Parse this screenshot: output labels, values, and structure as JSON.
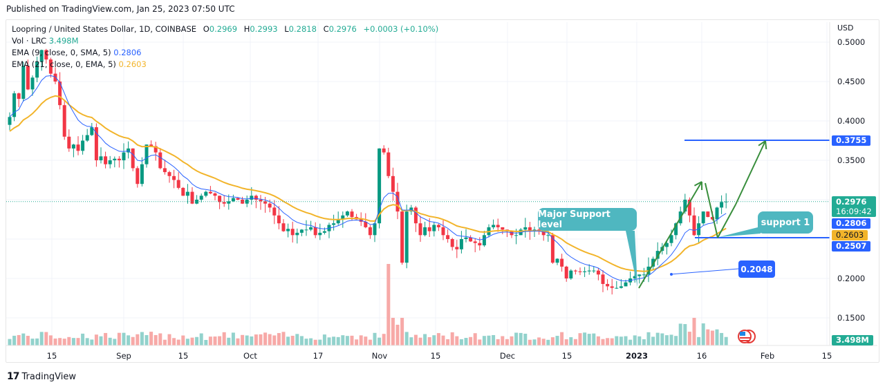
{
  "header": {
    "published": "Published on TradingView.com, Jan 25, 2023 07:50 UTC"
  },
  "legend": {
    "symbol": "Loopring / United States Dollar, 1D, COINBASE",
    "open_label": "O",
    "open": "0.2969",
    "high_label": "H",
    "high": "0.2993",
    "low_label": "L",
    "low": "0.2818",
    "close_label": "C",
    "close": "0.2976",
    "change": "+0.0003 (+0.10%)",
    "vol_label": "Vol · LRC",
    "vol_value": "3.498M",
    "ema9_label": "EMA (9, close, 0, SMA, 5)",
    "ema9_value": "0.2806",
    "ema21_label": "EMA (21, close, 0, EMA, 5)",
    "ema21_value": "0.2603"
  },
  "price_axis": {
    "currency": "USD",
    "ticks": [
      "0.5000",
      "0.4500",
      "0.4000",
      "0.3500",
      "0.2000",
      "0.1500"
    ],
    "badges": {
      "target": "0.3755",
      "last_price": "0.2976",
      "countdown": "16:09:42",
      "ema9": "0.2806",
      "ema21": "0.2603",
      "support": "0.2507",
      "volume": "3.498M"
    }
  },
  "time_axis": {
    "ticks": [
      "15",
      "Sep",
      "15",
      "Oct",
      "17",
      "Nov",
      "15",
      "Dec",
      "15",
      "2023",
      "16",
      "Feb",
      "15"
    ]
  },
  "annotations": {
    "major_support": "Major Support level",
    "support_1": "support 1",
    "pill_value": "0.2048"
  },
  "footer": {
    "logo_glyph": "17",
    "brand": "TradingView"
  },
  "colors": {
    "up": "#089981",
    "down": "#f23645",
    "vol_up": "#92d2cc",
    "vol_down": "#f7a9a7",
    "ema9": "#2962ff",
    "ema21": "#f2b42a",
    "drawing_blue": "#2962ff",
    "arrow_green": "#388e3c",
    "callout": "#4fb7c0",
    "last_price": "#22ab94"
  },
  "chart_data": {
    "type": "candlestick",
    "title": "Loopring / United States Dollar, 1D, COINBASE",
    "xlabel": "",
    "ylabel": "USD",
    "ylim": [
      0.125,
      0.52
    ],
    "x_tick_labels": [
      "15",
      "Sep",
      "15",
      "Oct",
      "17",
      "Nov",
      "15",
      "Dec",
      "15",
      "2023",
      "16",
      "Feb",
      "15"
    ],
    "y_tick_labels": [
      "0.5000",
      "0.4500",
      "0.4000",
      "0.3500",
      "0.2000",
      "0.1500"
    ],
    "grid": true,
    "last": {
      "open": 0.2969,
      "high": 0.2993,
      "low": 0.2818,
      "close": 0.2976,
      "change": 0.0003,
      "change_pct": 0.1
    },
    "indicators": [
      {
        "name": "EMA 9",
        "value": 0.2806,
        "color": "#2962ff"
      },
      {
        "name": "EMA 21",
        "value": 0.2603,
        "color": "#f2b42a"
      }
    ],
    "volume_last": "3.498M",
    "horizontal_levels": [
      {
        "label": "target",
        "value": 0.3755
      },
      {
        "label": "support 1",
        "value": 0.2507
      },
      {
        "label": "annotation",
        "value": 0.2048
      }
    ],
    "closes": [
      0.405,
      0.435,
      0.428,
      0.47,
      0.44,
      0.455,
      0.475,
      0.49,
      0.478,
      0.46,
      0.45,
      0.42,
      0.38,
      0.365,
      0.37,
      0.362,
      0.375,
      0.382,
      0.392,
      0.35,
      0.355,
      0.345,
      0.35,
      0.352,
      0.35,
      0.36,
      0.365,
      0.34,
      0.32,
      0.345,
      0.37,
      0.368,
      0.36,
      0.34,
      0.335,
      0.33,
      0.325,
      0.315,
      0.305,
      0.31,
      0.295,
      0.3,
      0.305,
      0.31,
      0.308,
      0.305,
      0.297,
      0.295,
      0.298,
      0.302,
      0.3,
      0.295,
      0.3,
      0.305,
      0.3,
      0.298,
      0.295,
      0.29,
      0.28,
      0.27,
      0.26,
      0.263,
      0.255,
      0.258,
      0.262,
      0.262,
      0.265,
      0.255,
      0.258,
      0.26,
      0.268,
      0.27,
      0.275,
      0.28,
      0.285,
      0.278,
      0.275,
      0.272,
      0.265,
      0.255,
      0.27,
      0.365,
      0.36,
      0.33,
      0.31,
      0.285,
      0.22,
      0.285,
      0.29,
      0.27,
      0.255,
      0.265,
      0.26,
      0.268,
      0.265,
      0.255,
      0.25,
      0.24,
      0.237,
      0.25,
      0.252,
      0.247,
      0.245,
      0.242,
      0.255,
      0.265,
      0.268,
      0.265,
      0.262,
      0.26,
      0.255,
      0.255,
      0.262,
      0.265,
      0.26,
      0.262,
      0.26,
      0.255,
      0.255,
      0.22,
      0.225,
      0.215,
      0.2,
      0.21,
      0.209,
      0.208,
      0.209,
      0.21,
      0.21,
      0.205,
      0.193,
      0.19,
      0.188,
      0.188,
      0.19,
      0.195,
      0.2,
      0.203,
      0.205,
      0.205,
      0.215,
      0.225,
      0.235,
      0.24,
      0.245,
      0.255,
      0.27,
      0.285,
      0.3,
      0.28,
      0.255,
      0.27,
      0.285,
      0.278,
      0.275,
      0.29,
      0.297,
      0.2976
    ]
  }
}
